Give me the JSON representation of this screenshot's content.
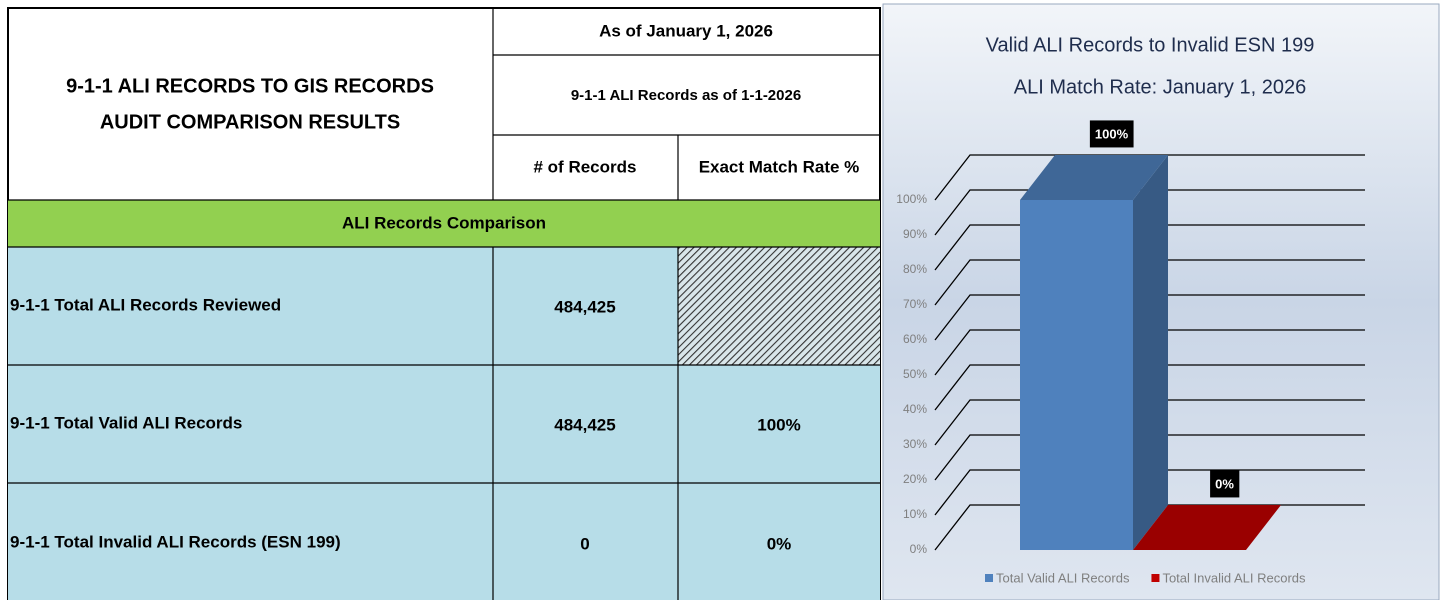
{
  "table": {
    "title": [
      "9-1-1 ALI RECORDS TO GIS RECORDS",
      "AUDIT COMPARISON RESULTS"
    ],
    "as_of": "As of January 1, 2026",
    "subheader": "9-1-1 ALI Records as of 1-1-2026",
    "columns": [
      "# of Records",
      "Exact Match Rate %"
    ],
    "section": "ALI Records Comparison",
    "rows": [
      {
        "label": "9-1-1 Total ALI Records Reviewed",
        "records": "484,425"
      },
      {
        "label": "9-1-1 Total Valid ALI Records",
        "records": "484,425",
        "rate": "100%"
      },
      {
        "label": "9-1-1 Total Invalid ALI Records (ESN 199)",
        "records": "0",
        "rate": "0%"
      }
    ]
  },
  "chart_data": {
    "type": "bar3d",
    "title": "Valid ALI Records to Invalid ESN 199",
    "subtitle": "ALI Match Rate: January 1, 2026",
    "ylim": [
      0,
      100
    ],
    "yticks": [
      {
        "value": 0,
        "label": "0%"
      },
      {
        "value": 10,
        "label": "10%"
      },
      {
        "value": 20,
        "label": "20%"
      },
      {
        "value": 30,
        "label": "30%"
      },
      {
        "value": 40,
        "label": "40%"
      },
      {
        "value": 50,
        "label": "50%"
      },
      {
        "value": 60,
        "label": "60%"
      },
      {
        "value": 70,
        "label": "70%"
      },
      {
        "value": 80,
        "label": "80%"
      },
      {
        "value": 90,
        "label": "90%"
      },
      {
        "value": 100,
        "label": "100%"
      }
    ],
    "grid": true,
    "legend": "bottom",
    "series": [
      {
        "name": "Total Valid ALI Records",
        "color": "#4f81bd",
        "values": [
          100
        ],
        "value_labels": [
          "100%"
        ]
      },
      {
        "name": "Total Invalid ALI Records",
        "color": "#c00000",
        "values": [
          0
        ],
        "value_labels": [
          "0%"
        ]
      }
    ]
  }
}
